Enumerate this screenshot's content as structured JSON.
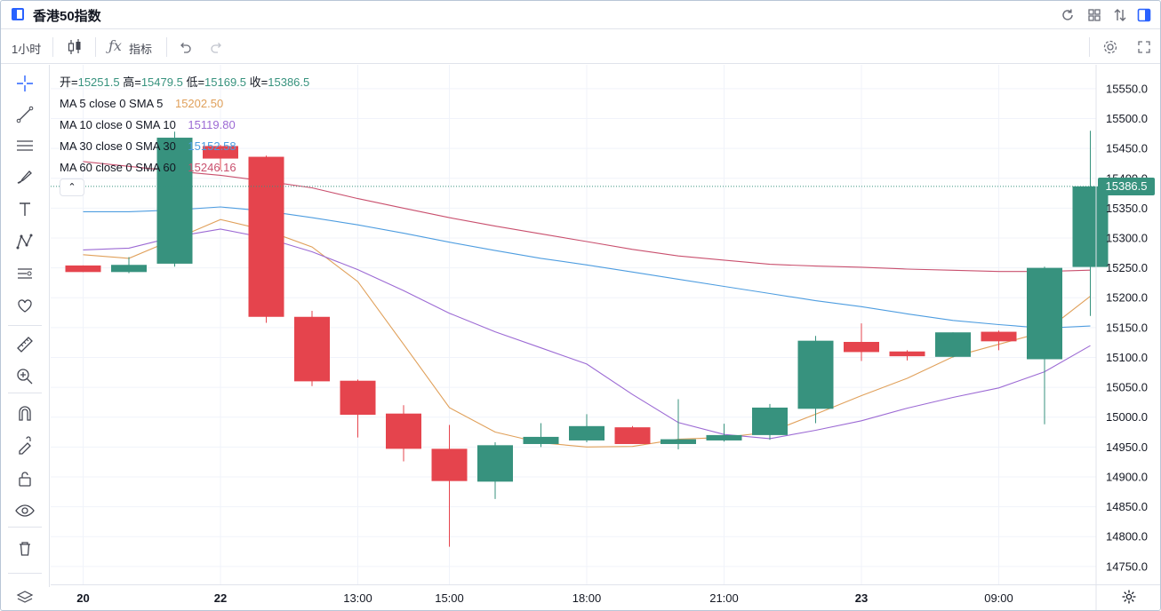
{
  "window": {
    "title": "香港50指数"
  },
  "toolbar": {
    "interval": "1小时",
    "indicators_label": "指标"
  },
  "legend": {
    "ohlc": [
      {
        "key": "开=",
        "value": "15251.5"
      },
      {
        "key": "高=",
        "value": "15479.5"
      },
      {
        "key": "低=",
        "value": "15169.5"
      },
      {
        "key": "收=",
        "value": "15386.5"
      }
    ],
    "ma": [
      {
        "label": "MA 5 close 0 SMA 5",
        "value": "15202.50",
        "color": "#e0a05a"
      },
      {
        "label": "MA 10 close 0 SMA 10",
        "value": "15119.80",
        "color": "#9c6ad4"
      },
      {
        "label": "MA 30 close 0 SMA 30",
        "value": "15152.58",
        "color": "#4e9de0"
      },
      {
        "label": "MA 60 close 0 SMA 60",
        "value": "15246.16",
        "color": "#c9506e"
      }
    ],
    "ohlc_color": "#37927e",
    "toggle_glyph": "⌃"
  },
  "price_badge": "15386.5",
  "colors": {
    "up": "#37927e",
    "down": "#e5444d",
    "grid": "#f0f3fa",
    "last_price_line": "#37927e"
  },
  "chart_data": {
    "type": "candlestick",
    "ylim": [
      14720,
      15590
    ],
    "y_ticks": [
      14750,
      14800,
      14850,
      14900,
      14950,
      15000,
      15050,
      15100,
      15150,
      15200,
      15250,
      15300,
      15350,
      15400,
      15450,
      15500,
      15550
    ],
    "y_tick_labels": [
      "14750.0",
      "14800.0",
      "14850.0",
      "14900.0",
      "14950.0",
      "15000.0",
      "15050.0",
      "15100.0",
      "15150.0",
      "15200.0",
      "15250.0",
      "15300.0",
      "15350.0",
      "15400.0",
      "15450.0",
      "15500.0",
      "15550.0"
    ],
    "x_labels": [
      {
        "label": "20",
        "bold": true,
        "index": 0.5
      },
      {
        "label": "22",
        "bold": true,
        "index": 3.5
      },
      {
        "label": "13:00",
        "bold": false,
        "index": 6.5
      },
      {
        "label": "15:00",
        "bold": false,
        "index": 8.5
      },
      {
        "label": "18:00",
        "bold": false,
        "index": 11.5
      },
      {
        "label": "21:00",
        "bold": false,
        "index": 14.5
      },
      {
        "label": "23",
        "bold": true,
        "index": 17.5
      },
      {
        "label": "09:00",
        "bold": false,
        "index": 20.5
      }
    ],
    "candles": [
      {
        "o": 15254,
        "h": 15254,
        "l": 15243,
        "c": 15243
      },
      {
        "o": 15243,
        "h": 15268,
        "l": 15241,
        "c": 15255
      },
      {
        "o": 15257,
        "h": 15478,
        "l": 15252,
        "c": 15468
      },
      {
        "o": 15454,
        "h": 15456,
        "l": 15414,
        "c": 15433
      },
      {
        "o": 15436,
        "h": 15438,
        "l": 15158,
        "c": 15168
      },
      {
        "o": 15168,
        "h": 15178,
        "l": 15052,
        "c": 15060
      },
      {
        "o": 15061,
        "h": 15063,
        "l": 14966,
        "c": 15004
      },
      {
        "o": 15006,
        "h": 15020,
        "l": 14926,
        "c": 14947
      },
      {
        "o": 14947,
        "h": 14987,
        "l": 14783,
        "c": 14893
      },
      {
        "o": 14892,
        "h": 14958,
        "l": 14863,
        "c": 14953
      },
      {
        "o": 14955,
        "h": 14990,
        "l": 14950,
        "c": 14967
      },
      {
        "o": 14961,
        "h": 15005,
        "l": 14958,
        "c": 14985
      },
      {
        "o": 14983,
        "h": 14985,
        "l": 14955,
        "c": 14955
      },
      {
        "o": 14955,
        "h": 15030,
        "l": 14946,
        "c": 14963
      },
      {
        "o": 14961,
        "h": 14989,
        "l": 14959,
        "c": 14970
      },
      {
        "o": 14970,
        "h": 15022,
        "l": 14962,
        "c": 15016
      },
      {
        "o": 15014,
        "h": 15136,
        "l": 14990,
        "c": 15128
      },
      {
        "o": 15126,
        "h": 15157,
        "l": 15094,
        "c": 15109
      },
      {
        "o": 15110,
        "h": 15112,
        "l": 15095,
        "c": 15102
      },
      {
        "o": 15101,
        "h": 15142,
        "l": 15100,
        "c": 15142
      },
      {
        "o": 15143,
        "h": 15145,
        "l": 15112,
        "c": 15127
      },
      {
        "o": 15097,
        "h": 15252,
        "l": 14988,
        "c": 15250
      },
      {
        "o": 15251.5,
        "h": 15479.5,
        "l": 15169.5,
        "c": 15386.5
      }
    ],
    "last_price": 15386.5,
    "ma_series": [
      {
        "name": "MA 5",
        "color": "#e0a05a",
        "points": [
          [
            0,
            15272
          ],
          [
            1,
            15266
          ],
          [
            2,
            15298
          ],
          [
            3,
            15331
          ],
          [
            4,
            15313
          ],
          [
            5,
            15285
          ],
          [
            6,
            15227
          ],
          [
            7,
            15122
          ],
          [
            8,
            15016
          ],
          [
            9,
            14975
          ],
          [
            10,
            14957
          ],
          [
            11,
            14950
          ],
          [
            12,
            14951
          ],
          [
            13,
            14963
          ],
          [
            14,
            14966
          ],
          [
            15,
            14975
          ],
          [
            16,
            15005
          ],
          [
            17,
            15036
          ],
          [
            18,
            15065
          ],
          [
            19,
            15101
          ],
          [
            20,
            15122
          ],
          [
            21,
            15143
          ],
          [
            22,
            15202.5
          ]
        ]
      },
      {
        "name": "MA 10",
        "color": "#9c6ad4",
        "points": [
          [
            0,
            15280
          ],
          [
            1,
            15283
          ],
          [
            2,
            15302
          ],
          [
            3,
            15315
          ],
          [
            4,
            15300
          ],
          [
            5,
            15277
          ],
          [
            6,
            15247
          ],
          [
            7,
            15212
          ],
          [
            8,
            15174
          ],
          [
            9,
            15143
          ],
          [
            10,
            15116
          ],
          [
            11,
            15089
          ],
          [
            12,
            15038
          ],
          [
            13,
            14991
          ],
          [
            14,
            14971
          ],
          [
            15,
            14964
          ],
          [
            16,
            14978
          ],
          [
            17,
            14994
          ],
          [
            18,
            15015
          ],
          [
            19,
            15033
          ],
          [
            20,
            15049
          ],
          [
            21,
            15076
          ],
          [
            22,
            15119.8
          ]
        ]
      },
      {
        "name": "MA 30",
        "color": "#4e9de0",
        "points": [
          [
            0,
            15344
          ],
          [
            1,
            15344
          ],
          [
            2,
            15347
          ],
          [
            3,
            15352
          ],
          [
            4,
            15345
          ],
          [
            5,
            15334
          ],
          [
            6,
            15322
          ],
          [
            7,
            15308
          ],
          [
            8,
            15293
          ],
          [
            9,
            15279
          ],
          [
            10,
            15266
          ],
          [
            11,
            15255
          ],
          [
            12,
            15243
          ],
          [
            13,
            15231
          ],
          [
            14,
            15219
          ],
          [
            15,
            15207
          ],
          [
            16,
            15195
          ],
          [
            17,
            15185
          ],
          [
            18,
            15173
          ],
          [
            19,
            15162
          ],
          [
            20,
            15155
          ],
          [
            21,
            15149
          ],
          [
            22,
            15152.58
          ]
        ]
      },
      {
        "name": "MA 60",
        "color": "#c9506e",
        "points": [
          [
            0,
            15428
          ],
          [
            1,
            15420
          ],
          [
            2,
            15412
          ],
          [
            3,
            15405
          ],
          [
            4,
            15395
          ],
          [
            5,
            15384
          ],
          [
            6,
            15366
          ],
          [
            7,
            15350
          ],
          [
            8,
            15334
          ],
          [
            9,
            15320
          ],
          [
            10,
            15307
          ],
          [
            11,
            15294
          ],
          [
            12,
            15281
          ],
          [
            13,
            15270
          ],
          [
            14,
            15263
          ],
          [
            15,
            15256
          ],
          [
            16,
            15253
          ],
          [
            17,
            15251
          ],
          [
            18,
            15248
          ],
          [
            19,
            15246
          ],
          [
            20,
            15244
          ],
          [
            21,
            15244
          ],
          [
            22,
            15246.16
          ]
        ]
      }
    ]
  }
}
